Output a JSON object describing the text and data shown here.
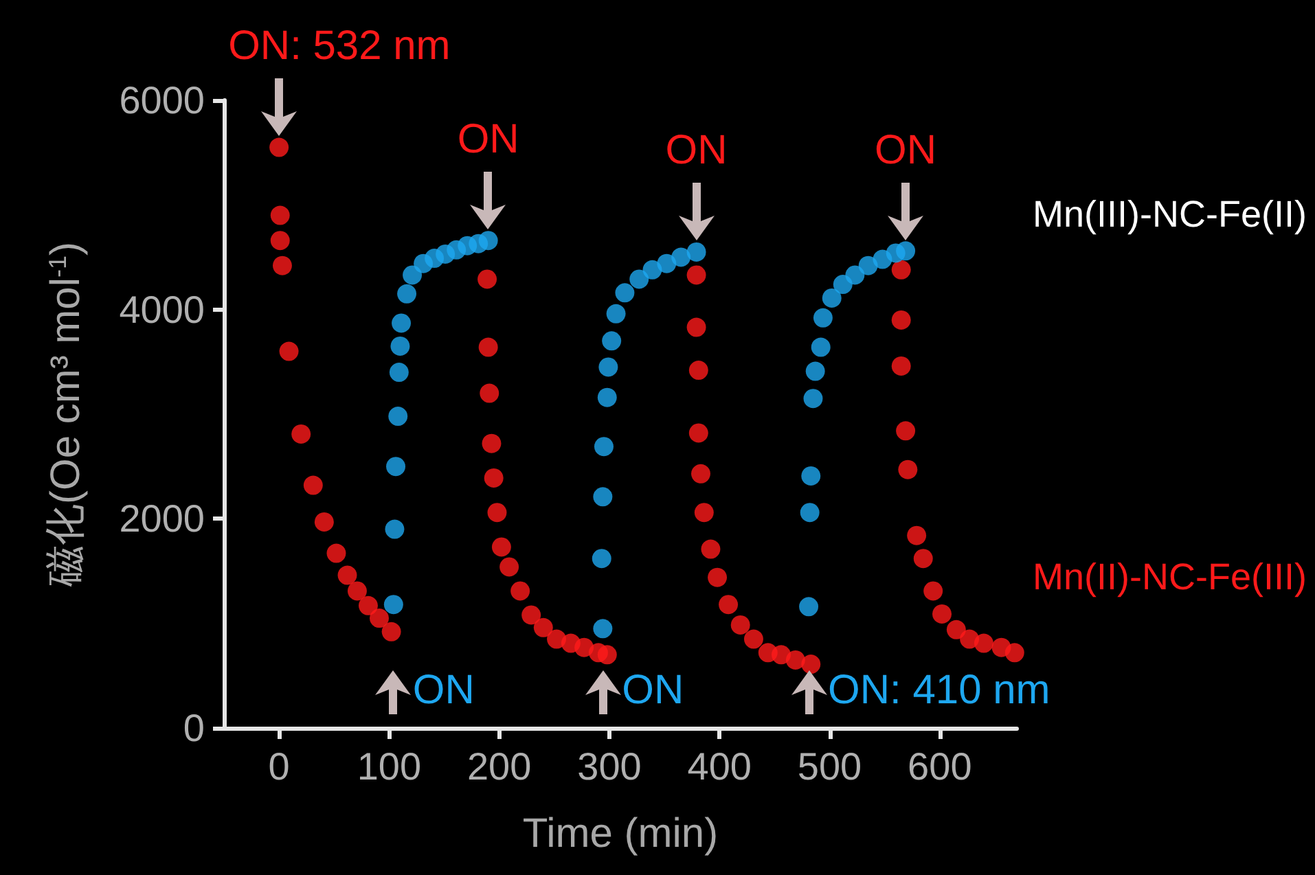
{
  "chart_data": {
    "type": "scatter",
    "xlabel": "Time (min)",
    "ylabel": "磁化(Oe cm³ mol$^{-1}$)",
    "xlim": [
      -50,
      670
    ],
    "ylim": [
      0,
      6000
    ],
    "xticks": [
      0,
      100,
      200,
      300,
      400,
      500,
      600
    ],
    "yticks": [
      0,
      2000,
      4000,
      6000
    ],
    "grid": false,
    "legend": false,
    "marker": "circle",
    "series": [
      {
        "name": "Mn(II)-NC-Fe(III)",
        "color": "#ff1a1a",
        "x": [
          0,
          1,
          1,
          3,
          9,
          20,
          31,
          41,
          52,
          62,
          71,
          81,
          91,
          102,
          189,
          190,
          191,
          193,
          195,
          198,
          202,
          209,
          219,
          229,
          240,
          252,
          265,
          277,
          290,
          298,
          379,
          379,
          381,
          381,
          383,
          386,
          392,
          398,
          408,
          419,
          431,
          444,
          456,
          469,
          483,
          565,
          565,
          565,
          569,
          571,
          579,
          585,
          594,
          602,
          615,
          627,
          640,
          656,
          668
        ],
        "values": [
          5550,
          4900,
          4660,
          4420,
          3600,
          2810,
          2320,
          1970,
          1670,
          1460,
          1310,
          1170,
          1050,
          920,
          4290,
          3640,
          3200,
          2720,
          2390,
          2060,
          1730,
          1540,
          1310,
          1080,
          960,
          850,
          810,
          770,
          720,
          700,
          4330,
          3830,
          3420,
          2820,
          2430,
          2060,
          1710,
          1440,
          1180,
          985,
          850,
          720,
          700,
          650,
          610,
          4380,
          3900,
          3460,
          2840,
          2470,
          1840,
          1620,
          1310,
          1090,
          940,
          850,
          810,
          770,
          720
        ]
      },
      {
        "name": "Mn(III)-NC-Fe(II)",
        "color": "#1ea7f0",
        "x": [
          104,
          105,
          106,
          108,
          109,
          110,
          111,
          116,
          121,
          131,
          141,
          151,
          161,
          171,
          181,
          190,
          294,
          293,
          294,
          295,
          298,
          299,
          302,
          306,
          314,
          327,
          339,
          352,
          365,
          379,
          481,
          482,
          483,
          485,
          487,
          492,
          494,
          502,
          512,
          523,
          535,
          548,
          560,
          569
        ],
        "values": [
          1180,
          1900,
          2500,
          2980,
          3400,
          3650,
          3870,
          4150,
          4330,
          4440,
          4490,
          4530,
          4570,
          4610,
          4630,
          4660,
          950,
          1620,
          2210,
          2690,
          3160,
          3450,
          3700,
          3960,
          4160,
          4290,
          4380,
          4440,
          4500,
          4550,
          1160,
          2060,
          2410,
          3150,
          3410,
          3640,
          3920,
          4110,
          4240,
          4330,
          4420,
          4480,
          4540,
          4560
        ]
      }
    ],
    "annotations": [
      {
        "text": "ON: 532 nm",
        "x": 0,
        "y": 5550
      },
      {
        "text": "ON",
        "x": 190,
        "y": 4660
      },
      {
        "text": "ON",
        "x": 379,
        "y": 4550
      },
      {
        "text": "ON",
        "x": 569,
        "y": 4560
      },
      {
        "text": "ON",
        "x": 104,
        "y": 1180
      },
      {
        "text": "ON",
        "x": 294,
        "y": 950
      },
      {
        "text": "ON: 410 nm",
        "x": 481,
        "y": 1160
      }
    ]
  }
}
